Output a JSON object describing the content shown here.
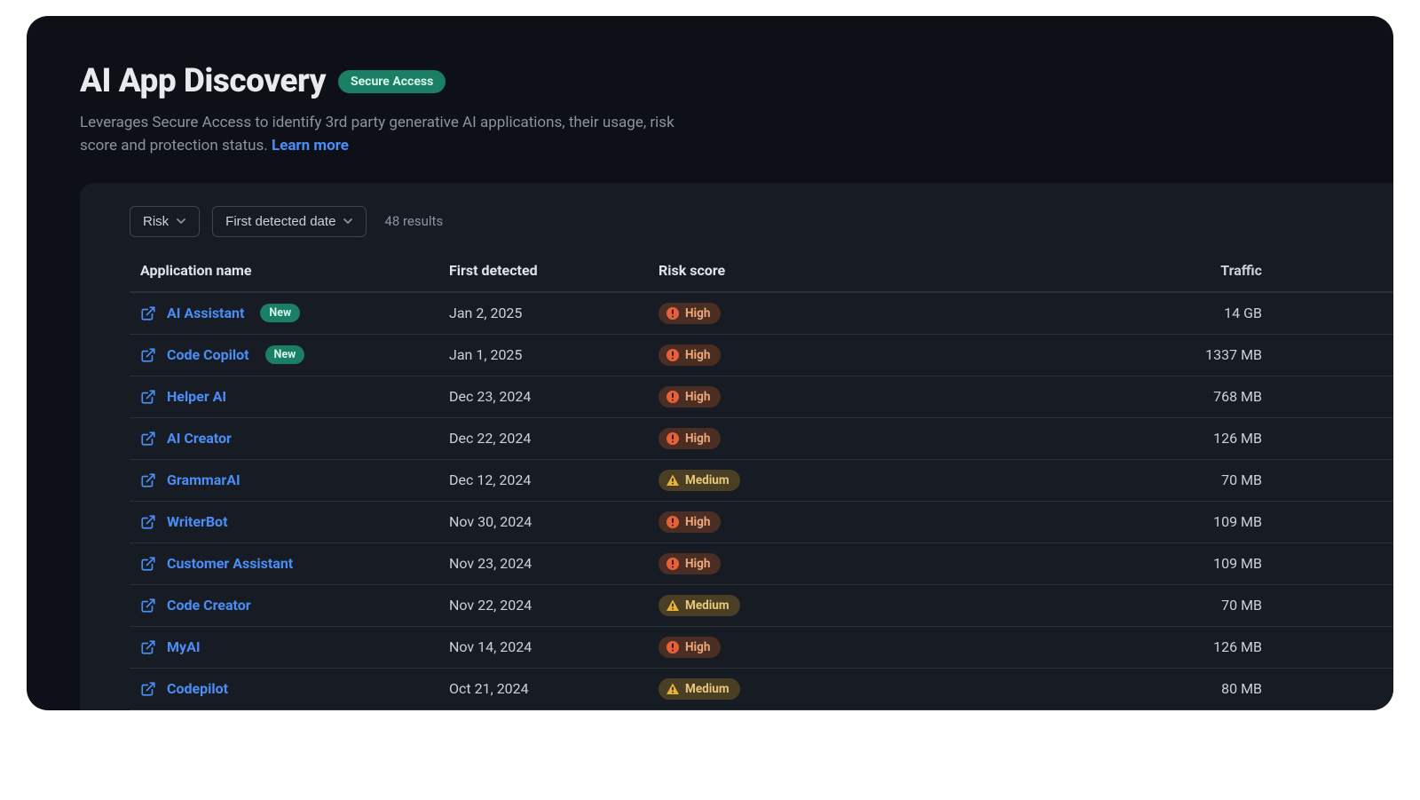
{
  "header": {
    "title": "AI App Discovery",
    "access_badge": "Secure Access",
    "subtitle_a": "Leverages Secure Access to identify 3rd party generative AI applications, their usage, risk score and protection status. ",
    "learn_more": "Learn more"
  },
  "toolbar": {
    "filter_risk": "Risk",
    "filter_date": "First detected date",
    "results": "48 results"
  },
  "columns": {
    "name": "Application name",
    "first_detected": "First detected",
    "risk": "Risk score",
    "traffic": "Traffic"
  },
  "new_badge_label": "New",
  "risk_labels": {
    "high": "High",
    "medium": "Medium"
  },
  "colors": {
    "panel_bg": "#0d1117",
    "card_bg": "#171c24",
    "text_primary": "#e8eaed",
    "text_muted": "#8b949e",
    "link": "#4a8ef5",
    "border": "#2a3038",
    "badge_access_bg": "#1a7f64",
    "badge_access_fg": "#d4f7ec",
    "risk_high_bg": "#4a2e24",
    "risk_high_fg": "#f0a77a",
    "risk_high_icon": "#e8603a",
    "risk_medium_bg": "#4a3f24",
    "risk_medium_fg": "#e8c878",
    "risk_medium_icon": "#e8b23a"
  },
  "rows": [
    {
      "name": "AI Assistant",
      "new": true,
      "date": "Jan 2, 2025",
      "risk": "high",
      "traffic": "14 GB"
    },
    {
      "name": "Code Copilot",
      "new": true,
      "date": "Jan 1, 2025",
      "risk": "high",
      "traffic": "1337 MB"
    },
    {
      "name": "Helper AI",
      "new": false,
      "date": "Dec 23, 2024",
      "risk": "high",
      "traffic": "768 MB"
    },
    {
      "name": "AI Creator",
      "new": false,
      "date": "Dec 22, 2024",
      "risk": "high",
      "traffic": "126 MB"
    },
    {
      "name": "GrammarAI",
      "new": false,
      "date": "Dec 12, 2024",
      "risk": "medium",
      "traffic": "70 MB"
    },
    {
      "name": "WriterBot",
      "new": false,
      "date": "Nov 30, 2024",
      "risk": "high",
      "traffic": "109 MB"
    },
    {
      "name": "Customer Assistant",
      "new": false,
      "date": "Nov 23, 2024",
      "risk": "high",
      "traffic": "109 MB"
    },
    {
      "name": "Code Creator",
      "new": false,
      "date": "Nov 22, 2024",
      "risk": "medium",
      "traffic": "70 MB"
    },
    {
      "name": "MyAI",
      "new": false,
      "date": "Nov 14, 2024",
      "risk": "high",
      "traffic": "126 MB"
    },
    {
      "name": "Codepilot",
      "new": false,
      "date": "Oct 21, 2024",
      "risk": "medium",
      "traffic": "80 MB"
    }
  ]
}
